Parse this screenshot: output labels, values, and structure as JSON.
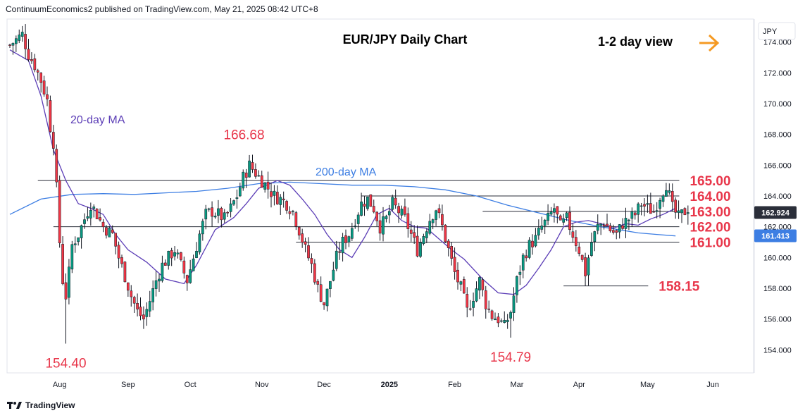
{
  "header": {
    "text": "ContinuumEconomics2 published on TradingView.com, May 21, 2025 08:42 UTC+8"
  },
  "footer": {
    "brand": "TradingView",
    "logo_icon": "tradingview-logo-icon"
  },
  "chart_data": {
    "type": "candlestick",
    "title": "EUR/JPY Daily Chart",
    "subtitle": "1-2 day view",
    "currency_label": "JPY",
    "ylim": [
      152.5,
      175.5
    ],
    "y_ticks": [
      154,
      156,
      158,
      160,
      162,
      164,
      166,
      168,
      170,
      172,
      174
    ],
    "y_tick_labels": [
      "154.000",
      "156.000",
      "158.000",
      "160.000",
      "162.000",
      "164.000",
      "166.000",
      "168.000",
      "170.000",
      "172.000",
      "174.000"
    ],
    "x_ticks": [
      {
        "label": "Aug",
        "i": 16
      },
      {
        "label": "Sep",
        "i": 38
      },
      {
        "label": "Oct",
        "i": 58
      },
      {
        "label": "Nov",
        "i": 81
      },
      {
        "label": "Dec",
        "i": 101
      },
      {
        "label": "2025",
        "i": 122
      },
      {
        "label": "Feb",
        "i": 143
      },
      {
        "label": "Mar",
        "i": 163
      },
      {
        "label": "Apr",
        "i": 183
      },
      {
        "label": "May",
        "i": 205
      },
      {
        "label": "Jun",
        "i": 226
      }
    ],
    "n_slots": 240,
    "current_price": {
      "value": 162.924,
      "label": "162.924"
    },
    "ma_price": {
      "value": 161.413,
      "label": "161.413"
    },
    "levels": [
      {
        "value": 165.0,
        "label": "165.00",
        "from": 9,
        "to": 222
      },
      {
        "value": 164.0,
        "label": "164.00",
        "from": 113,
        "to": 222
      },
      {
        "value": 163.0,
        "label": "163.00",
        "from": 152,
        "to": 222
      },
      {
        "value": 162.0,
        "label": "162.00",
        "from": 14,
        "to": 222
      },
      {
        "value": 161.0,
        "label": "161.00",
        "from": 92,
        "to": 222
      },
      {
        "value": 158.15,
        "label": "158.15",
        "from": 178,
        "to": 212
      }
    ],
    "annotations": [
      {
        "text": "166.68",
        "i": 78,
        "value": 166.68
      },
      {
        "text": "154.40",
        "i": 18,
        "value": 154.4
      },
      {
        "text": "154.79",
        "i": 161,
        "value": 154.79
      }
    ],
    "series_labels": {
      "ma20": "20-day MA",
      "ma200": "200-day MA"
    },
    "ma20": [
      [
        0,
        173.5
      ],
      [
        6,
        172.8
      ],
      [
        10,
        170.5
      ],
      [
        14,
        167
      ],
      [
        18,
        165
      ],
      [
        22,
        163.5
      ],
      [
        26,
        163.2
      ],
      [
        30,
        162.8
      ],
      [
        34,
        161.5
      ],
      [
        38,
        160.5
      ],
      [
        44,
        159.7
      ],
      [
        50,
        158.6
      ],
      [
        56,
        158.3
      ],
      [
        60,
        159.5
      ],
      [
        66,
        161.8
      ],
      [
        72,
        162.6
      ],
      [
        76,
        163.5
      ],
      [
        80,
        164.5
      ],
      [
        86,
        165
      ],
      [
        90,
        164.7
      ],
      [
        94,
        163.8
      ],
      [
        98,
        162.8
      ],
      [
        102,
        161.5
      ],
      [
        106,
        160.5
      ],
      [
        110,
        160
      ],
      [
        114,
        161.3
      ],
      [
        118,
        162.8
      ],
      [
        122,
        163.2
      ],
      [
        126,
        162.4
      ],
      [
        130,
        162
      ],
      [
        134,
        161.9
      ],
      [
        138,
        161.2
      ],
      [
        142,
        160.5
      ],
      [
        146,
        159.9
      ],
      [
        152,
        158.6
      ],
      [
        157,
        157.7
      ],
      [
        162,
        157.6
      ],
      [
        166,
        158.2
      ],
      [
        170,
        159.3
      ],
      [
        174,
        160.5
      ],
      [
        178,
        162
      ],
      [
        182,
        162.3
      ],
      [
        186,
        162.4
      ],
      [
        190,
        162.2
      ],
      [
        194,
        161.9
      ],
      [
        198,
        162.2
      ],
      [
        202,
        162.1
      ],
      [
        206,
        162.5
      ],
      [
        210,
        162.8
      ],
      [
        214,
        163.2
      ]
    ],
    "ma200": [
      [
        0,
        162.8
      ],
      [
        10,
        163.8
      ],
      [
        20,
        164.1
      ],
      [
        30,
        164.15
      ],
      [
        40,
        164.1
      ],
      [
        50,
        164.2
      ],
      [
        60,
        164.3
      ],
      [
        70,
        164.5
      ],
      [
        80,
        164.8
      ],
      [
        90,
        164.9
      ],
      [
        100,
        164.8
      ],
      [
        110,
        164.7
      ],
      [
        120,
        164.7
      ],
      [
        130,
        164.6
      ],
      [
        140,
        164.4
      ],
      [
        150,
        164.0
      ],
      [
        160,
        163.4
      ],
      [
        170,
        162.9
      ],
      [
        180,
        162.4
      ],
      [
        190,
        162.0
      ],
      [
        196,
        161.8
      ],
      [
        202,
        161.6
      ],
      [
        208,
        161.5
      ],
      [
        214,
        161.4
      ]
    ],
    "ohlc_anchors": [
      [
        0,
        173.8
      ],
      [
        4,
        174.5
      ],
      [
        6,
        173.2
      ],
      [
        8,
        172.5
      ],
      [
        10,
        171.5
      ],
      [
        12,
        170.2
      ],
      [
        13,
        168.5
      ],
      [
        14,
        167.5
      ],
      [
        15,
        164.5
      ],
      [
        16,
        161
      ],
      [
        17,
        158.5
      ],
      [
        18,
        157.5
      ],
      [
        19,
        159
      ],
      [
        20,
        160.8
      ],
      [
        22,
        161.5
      ],
      [
        24,
        162.5
      ],
      [
        26,
        163.5
      ],
      [
        28,
        162.8
      ],
      [
        30,
        162
      ],
      [
        33,
        161.5
      ],
      [
        35,
        160
      ],
      [
        37,
        158.8
      ],
      [
        39,
        157.5
      ],
      [
        41,
        156.5
      ],
      [
        43,
        156
      ],
      [
        45,
        157.2
      ],
      [
        47,
        158.5
      ],
      [
        49,
        159.5
      ],
      [
        51,
        160
      ],
      [
        53,
        160.5
      ],
      [
        55,
        159.5
      ],
      [
        57,
        158.5
      ],
      [
        59,
        160
      ],
      [
        61,
        161.5
      ],
      [
        63,
        162.8
      ],
      [
        65,
        163
      ],
      [
        67,
        162.8
      ],
      [
        69,
        162.5
      ],
      [
        71,
        163.2
      ],
      [
        73,
        164
      ],
      [
        75,
        165.2
      ],
      [
        77,
        166
      ],
      [
        79,
        165.5
      ],
      [
        81,
        165
      ],
      [
        83,
        164.5
      ],
      [
        85,
        164
      ],
      [
        87,
        163.8
      ],
      [
        89,
        163.5
      ],
      [
        91,
        163
      ],
      [
        93,
        161.8
      ],
      [
        95,
        160.5
      ],
      [
        97,
        159.5
      ],
      [
        99,
        158
      ],
      [
        101,
        157
      ],
      [
        103,
        158.5
      ],
      [
        105,
        160
      ],
      [
        107,
        161
      ],
      [
        109,
        161.5
      ],
      [
        111,
        162.5
      ],
      [
        113,
        163.5
      ],
      [
        115,
        163.8
      ],
      [
        117,
        163.2
      ],
      [
        119,
        162
      ],
      [
        121,
        162.5
      ],
      [
        123,
        163.5
      ],
      [
        125,
        163
      ],
      [
        127,
        162.5
      ],
      [
        129,
        161.5
      ],
      [
        131,
        160.5
      ],
      [
        133,
        161.5
      ],
      [
        135,
        162.5
      ],
      [
        137,
        163.2
      ],
      [
        139,
        162
      ],
      [
        141,
        160.5
      ],
      [
        143,
        159
      ],
      [
        145,
        158
      ],
      [
        147,
        156.5
      ],
      [
        149,
        157.5
      ],
      [
        151,
        158.5
      ],
      [
        153,
        157
      ],
      [
        155,
        156.2
      ],
      [
        157,
        156
      ],
      [
        159,
        155.5
      ],
      [
        161,
        156.5
      ],
      [
        163,
        158.5
      ],
      [
        165,
        160
      ],
      [
        167,
        160.8
      ],
      [
        169,
        161.2
      ],
      [
        171,
        162
      ],
      [
        173,
        162.5
      ],
      [
        175,
        163.2
      ],
      [
        177,
        162
      ],
      [
        179,
        162.5
      ],
      [
        181,
        161.5
      ],
      [
        183,
        160.5
      ],
      [
        185,
        159
      ],
      [
        187,
        161
      ],
      [
        189,
        162
      ],
      [
        191,
        162.3
      ],
      [
        193,
        161.8
      ],
      [
        195,
        161.5
      ],
      [
        197,
        162.2
      ],
      [
        199,
        162.5
      ],
      [
        201,
        162.8
      ],
      [
        203,
        163.5
      ],
      [
        205,
        163.2
      ],
      [
        207,
        163
      ],
      [
        209,
        164
      ],
      [
        211,
        164.8
      ],
      [
        213,
        163.2
      ],
      [
        215,
        162.6
      ],
      [
        217,
        163
      ],
      [
        218,
        162.92
      ]
    ]
  }
}
